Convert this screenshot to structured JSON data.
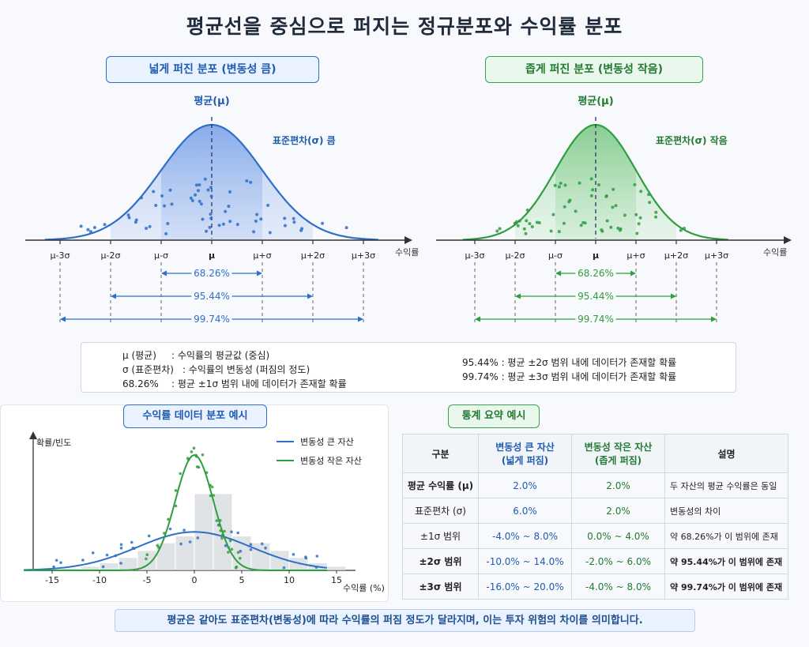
{
  "title": "평균선을 중심으로 퍼지는 정규분포와 수익률 분포",
  "left_panel": {
    "label": "넓게 퍼진 분포 (변동성 큼)",
    "mean_label": "평균(μ)",
    "sd_label": "표준편차(σ) 큼",
    "axis_label": "수익률",
    "ticks": [
      "μ-3σ",
      "μ-2σ",
      "μ-σ",
      "μ",
      "μ+σ",
      "μ+2σ",
      "μ+3σ"
    ],
    "ranges": [
      "68.26%",
      "95.44%",
      "99.74%"
    ]
  },
  "right_panel": {
    "label": "좁게 퍼진 분포 (변동성 작음)",
    "mean_label": "평균(μ)",
    "sd_label": "표준편차(σ) 작음",
    "axis_label": "수익률",
    "ticks": [
      "μ-3σ",
      "μ-2σ",
      "μ-σ",
      "μ",
      "μ+σ",
      "μ+2σ",
      "μ+3σ"
    ],
    "ranges": [
      "68.26%",
      "95.44%",
      "99.74%"
    ]
  },
  "legend": {
    "row1_term": "μ (평균)",
    "row1_desc": ": 수익률의 평균값 (중심)",
    "row2_term": "σ (표준편차)",
    "row2_desc": ": 수익률의 변동성 (퍼짐의 정도)",
    "row3_term": "68.26%",
    "row3_desc": ": 평균 ±1σ 범위 내에 데이터가 존재할 확률",
    "row4": "95.44% : 평균 ±2σ 범위 내에 데이터가 존재할 확률",
    "row5": "99.74% : 평균 ±3σ 범위 내에 데이터가 존재할 확률"
  },
  "chart_section_label": "수익률 데이터 분포 예시",
  "chart_data": {
    "type": "line",
    "ylabel": "확률/빈도",
    "xlabel": "수익률 (%)",
    "x_ticks": [
      -15,
      -10,
      -5,
      0,
      5,
      10,
      15
    ],
    "xlim": [
      -17,
      17
    ],
    "series": [
      {
        "name": "변동성 큰 자산",
        "mean": 2.0,
        "sd": 6.0,
        "color": "#2f6fc7"
      },
      {
        "name": "변동성 작은 자산",
        "mean": 2.0,
        "sd": 2.0,
        "color": "#2f9e3e"
      }
    ],
    "legend_position": "top-right"
  },
  "stats_section_label": "통계 요약 예시",
  "stats_table": {
    "headers": [
      "구분",
      "변동성 큰 자산\n(넓게 퍼짐)",
      "변동성 작은 자산\n(좁게 퍼짐)",
      "설명"
    ],
    "rows": [
      [
        "평균 수익률 (μ)",
        "2.0%",
        "2.0%",
        "두 자산의 평균 수익률은 동일"
      ],
      [
        "표준편차 (σ)",
        "6.0%",
        "2.0%",
        "변동성의 차이"
      ],
      [
        "±1σ 범위",
        "-4.0% ~ 8.0%",
        "0.0% ~ 4.0%",
        "약 68.26%가 이 범위에 존재"
      ],
      [
        "±2σ 범위",
        "-10.0% ~ 14.0%",
        "-2.0% ~ 6.0%",
        "약 95.44%가 이 범위에 존재"
      ],
      [
        "±3σ 범위",
        "-16.0% ~ 20.0%",
        "-4.0% ~ 8.0%",
        "약 99.74%가 이 범위에 존재"
      ]
    ]
  },
  "bottom_banner": "평균은 같아도 표준편차(변동성)에 따라 수익률의 퍼짐 정도가 달라지며, 이는 투자 위험의 차이를 의미합니다.",
  "colors": {
    "blue": "#2f6fc7",
    "green": "#2f9e3e"
  }
}
